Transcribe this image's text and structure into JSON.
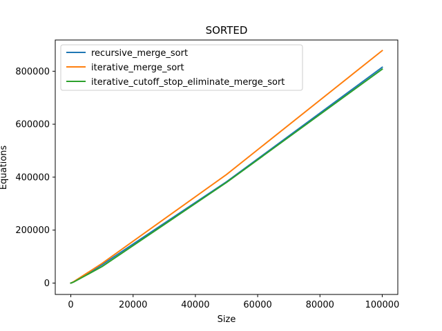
{
  "chart_data": {
    "type": "line",
    "title": "SORTED",
    "xlabel": "Size",
    "ylabel": "Equations",
    "xlim": [
      -5000,
      105000
    ],
    "ylim": [
      -43000,
      918000
    ],
    "x_ticks": [
      0,
      20000,
      40000,
      60000,
      80000,
      100000
    ],
    "x_tick_labels": [
      "0",
      "20000",
      "40000",
      "60000",
      "80000",
      "100000"
    ],
    "y_ticks": [
      0,
      200000,
      400000,
      600000,
      800000
    ],
    "y_tick_labels": [
      "0",
      "200000",
      "400000",
      "600000",
      "800000"
    ],
    "grid": false,
    "legend_position": "top-left",
    "series": [
      {
        "name": "recursive_merge_sort",
        "color": "#1f77b4",
        "x": [
          0,
          100,
          1000,
          10000,
          50000,
          100000
        ],
        "y": [
          0,
          316,
          5044,
          69008,
          382512,
          815024
        ]
      },
      {
        "name": "iterative_merge_sort",
        "color": "#ff7f0e",
        "x": [
          0,
          100,
          1000,
          10000,
          50000,
          100000
        ],
        "y": [
          0,
          356,
          5800,
          74000,
          410000,
          878000
        ]
      },
      {
        "name": "iterative_cutoff_stop_eliminate_merge_sort",
        "color": "#2ca02c",
        "x": [
          0,
          100,
          1000,
          10000,
          50000,
          100000
        ],
        "y": [
          0,
          250,
          4400,
          62000,
          380000,
          808000
        ]
      }
    ]
  }
}
